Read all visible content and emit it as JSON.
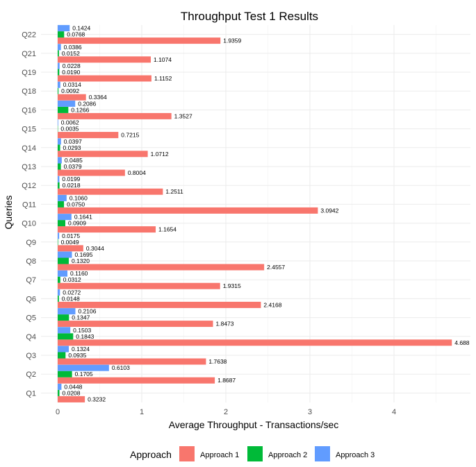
{
  "chart_data": {
    "type": "bar",
    "orientation": "horizontal",
    "title": "Throughput Test 1 Results",
    "xlabel": "Average Throughput - Transactions/sec",
    "ylabel": "Queries",
    "xlim": [
      0,
      4.7
    ],
    "xticks": [
      0,
      1,
      2,
      3,
      4
    ],
    "grid": true,
    "legend": {
      "title": "Approach",
      "position": "bottom"
    },
    "categories": [
      "Q1",
      "Q2",
      "Q3",
      "Q4",
      "Q5",
      "Q6",
      "Q7",
      "Q8",
      "Q9",
      "Q10",
      "Q11",
      "Q12",
      "Q13",
      "Q14",
      "Q15",
      "Q16",
      "Q18",
      "Q19",
      "Q21",
      "Q22"
    ],
    "series": [
      {
        "name": "Approach 1",
        "color": "#F8766D",
        "values": [
          0.3232,
          1.8687,
          1.7638,
          4.688,
          1.8473,
          2.4168,
          1.9315,
          2.4557,
          0.3044,
          1.1654,
          3.0942,
          1.2511,
          0.8004,
          1.0712,
          0.7215,
          1.3527,
          0.3364,
          1.1152,
          1.1074,
          1.9359
        ],
        "labels": [
          "0.3232",
          "1.8687",
          "1.7638",
          "4.688",
          "1.8473",
          "2.4168",
          "1.9315",
          "2.4557",
          "0.3044",
          "1.1654",
          "3.0942",
          "1.2511",
          "0.8004",
          "1.0712",
          "0.7215",
          "1.3527",
          "0.3364",
          "1.1152",
          "1.1074",
          "1.9359"
        ]
      },
      {
        "name": "Approach 2",
        "color": "#00BA38",
        "values": [
          0.0208,
          0.1705,
          0.0935,
          0.1843,
          0.1347,
          0.0148,
          0.0312,
          0.132,
          0.0049,
          0.0909,
          0.075,
          0.0218,
          0.0379,
          0.0293,
          0.0035,
          0.1266,
          0.0092,
          0.019,
          0.0152,
          0.0768
        ],
        "labels": [
          "0.0208",
          "0.1705",
          "0.0935",
          "0.1843",
          "0.1347",
          "0.0148",
          "0.0312",
          "0.1320",
          "0.0049",
          "0.0909",
          "0.0750",
          "0.0218",
          "0.0379",
          "0.0293",
          "0.0035",
          "0.1266",
          "0.0092",
          "0.0190",
          "0.0152",
          "0.0768"
        ]
      },
      {
        "name": "Approach 3",
        "color": "#619CFF",
        "values": [
          0.0448,
          0.6103,
          0.1324,
          0.1503,
          0.2106,
          0.0272,
          0.116,
          0.1695,
          0.0175,
          0.1641,
          0.106,
          0.0199,
          0.0485,
          0.0397,
          0.0062,
          0.2086,
          0.0314,
          0.0228,
          0.0386,
          0.1424
        ],
        "labels": [
          "0.0448",
          "0.6103",
          "0.1324",
          "0.1503",
          "0.2106",
          "0.0272",
          "0.1160",
          "0.1695",
          "0.0175",
          "0.1641",
          "0.1060",
          "0.0199",
          "0.0485",
          "0.0397",
          "0.0062",
          "0.2086",
          "0.0314",
          "0.0228",
          "0.0386",
          "0.1424"
        ]
      }
    ]
  }
}
